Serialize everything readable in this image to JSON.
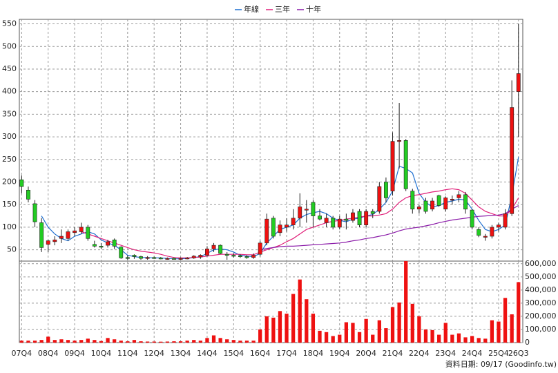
{
  "chart_data": {
    "type": "candlestick",
    "legend": "top",
    "grid": true,
    "source": "資料日期: 09/17 (Goodinfo.tw)",
    "categories": [
      "07Q4",
      null,
      null,
      null,
      "08Q4",
      null,
      null,
      null,
      "09Q4",
      null,
      null,
      null,
      "10Q4",
      null,
      null,
      null,
      "11Q4",
      null,
      null,
      null,
      "12Q4",
      null,
      null,
      null,
      "13Q4",
      null,
      null,
      null,
      "14Q4",
      null,
      null,
      null,
      "15Q4",
      null,
      null,
      null,
      "16Q4",
      null,
      null,
      null,
      "17Q4",
      null,
      null,
      null,
      "18Q4",
      null,
      null,
      null,
      "19Q4",
      null,
      null,
      null,
      "20Q4",
      null,
      null,
      null,
      "21Q4",
      null,
      null,
      null,
      "22Q4",
      null,
      null,
      null,
      "23Q4",
      null,
      null,
      null,
      "24Q4",
      null,
      null,
      null,
      "25Q4",
      null,
      null,
      "26Q3"
    ],
    "open": [
      205,
      182,
      152,
      110,
      62,
      68,
      75,
      75,
      88,
      90,
      100,
      62,
      58,
      60,
      72,
      56,
      33,
      38,
      35,
      32,
      33,
      32,
      30,
      31,
      30,
      31,
      32,
      34,
      38,
      52,
      60,
      40,
      38,
      37,
      35,
      33,
      40,
      65,
      120,
      88,
      100,
      105,
      120,
      140,
      155,
      125,
      110,
      120,
      100,
      118,
      115,
      135,
      105,
      135,
      135,
      200,
      180,
      290,
      292,
      180,
      140,
      158,
      140,
      170,
      140,
      160,
      165,
      172,
      138,
      95,
      80,
      80,
      100,
      100,
      130,
      400
    ],
    "high": [
      215,
      190,
      160,
      120,
      72,
      80,
      95,
      95,
      100,
      110,
      105,
      70,
      65,
      72,
      75,
      58,
      38,
      40,
      37,
      36,
      35,
      34,
      33,
      33,
      33,
      34,
      38,
      40,
      58,
      65,
      62,
      45,
      42,
      40,
      38,
      42,
      70,
      130,
      125,
      115,
      120,
      140,
      175,
      160,
      160,
      140,
      130,
      125,
      125,
      130,
      140,
      140,
      140,
      140,
      200,
      210,
      310,
      375,
      295,
      185,
      150,
      165,
      165,
      172,
      168,
      170,
      180,
      178,
      140,
      100,
      85,
      105,
      110,
      140,
      425,
      550
    ],
    "low": [
      175,
      155,
      100,
      45,
      45,
      60,
      65,
      70,
      80,
      85,
      70,
      55,
      52,
      55,
      52,
      30,
      28,
      30,
      28,
      28,
      30,
      29,
      28,
      29,
      28,
      29,
      30,
      30,
      35,
      45,
      40,
      28,
      33,
      32,
      30,
      30,
      35,
      60,
      75,
      80,
      90,
      95,
      100,
      110,
      100,
      115,
      100,
      95,
      95,
      95,
      110,
      100,
      100,
      120,
      130,
      155,
      170,
      230,
      180,
      130,
      130,
      130,
      135,
      145,
      135,
      150,
      155,
      130,
      95,
      78,
      70,
      75,
      90,
      95,
      125,
      300
    ],
    "close": [
      190,
      162,
      112,
      55,
      70,
      72,
      80,
      90,
      92,
      100,
      75,
      58,
      57,
      68,
      58,
      32,
      32,
      35,
      31,
      33,
      32,
      30,
      31,
      30,
      31,
      32,
      36,
      38,
      52,
      60,
      42,
      38,
      37,
      35,
      33,
      38,
      65,
      118,
      80,
      105,
      105,
      120,
      145,
      140,
      125,
      118,
      120,
      100,
      118,
      115,
      132,
      105,
      135,
      130,
      190,
      165,
      290,
      292,
      185,
      140,
      145,
      135,
      158,
      148,
      165,
      162,
      172,
      140,
      100,
      82,
      80,
      100,
      105,
      130,
      365,
      440
    ],
    "volume": [
      15000,
      15000,
      15000,
      20000,
      45000,
      20000,
      25000,
      20000,
      15000,
      20000,
      30000,
      20000,
      12000,
      35000,
      25000,
      15000,
      10000,
      20000,
      10000,
      8000,
      8000,
      7000,
      8000,
      10000,
      10000,
      15000,
      20000,
      15000,
      35000,
      55000,
      35000,
      25000,
      20000,
      15000,
      15000,
      15000,
      100000,
      200000,
      190000,
      240000,
      220000,
      370000,
      480000,
      330000,
      220000,
      90000,
      80000,
      50000,
      60000,
      155000,
      150000,
      80000,
      180000,
      60000,
      170000,
      110000,
      270000,
      305000,
      620000,
      295000,
      200000,
      100000,
      95000,
      60000,
      150000,
      60000,
      70000,
      40000,
      50000,
      35000,
      30000,
      170000,
      160000,
      340000,
      215000,
      460000
    ],
    "up_color": "#ee1111",
    "down_color": "#22cc22",
    "volume_color": "#ee1111",
    "series": [
      {
        "name": "年線",
        "color": "#1e6fd0",
        "values": [
          null,
          null,
          null,
          125,
          100,
          85,
          75,
          70,
          80,
          85,
          90,
          85,
          72,
          65,
          60,
          50,
          38,
          35,
          33,
          33,
          32,
          32,
          31,
          30,
          30,
          31,
          33,
          35,
          42,
          50,
          52,
          50,
          45,
          38,
          36,
          35,
          42,
          65,
          80,
          95,
          100,
          105,
          120,
          128,
          132,
          135,
          130,
          120,
          115,
          112,
          118,
          120,
          125,
          128,
          140,
          155,
          180,
          235,
          230,
          220,
          175,
          155,
          145,
          148,
          155,
          158,
          162,
          160,
          140,
          115,
          95,
          90,
          95,
          105,
          170,
          255
        ]
      },
      {
        "name": "三年",
        "color": "#e0207a",
        "values": [
          null,
          null,
          null,
          null,
          null,
          null,
          null,
          null,
          null,
          90,
          85,
          80,
          75,
          70,
          65,
          60,
          55,
          50,
          47,
          45,
          43,
          40,
          36,
          33,
          32,
          32,
          33,
          34,
          36,
          38,
          40,
          40,
          40,
          40,
          39,
          39,
          45,
          50,
          55,
          60,
          68,
          75,
          85,
          95,
          100,
          105,
          110,
          113,
          115,
          118,
          120,
          122,
          125,
          125,
          127,
          130,
          140,
          155,
          165,
          170,
          172,
          175,
          178,
          180,
          183,
          185,
          183,
          175,
          160,
          145,
          135,
          130,
          125,
          125,
          140,
          165
        ]
      },
      {
        "name": "十年",
        "color": "#8a1aa8",
        "values": [
          null,
          null,
          null,
          null,
          null,
          null,
          null,
          null,
          null,
          null,
          null,
          null,
          null,
          null,
          null,
          null,
          null,
          null,
          null,
          null,
          null,
          null,
          null,
          null,
          null,
          null,
          null,
          null,
          null,
          null,
          null,
          null,
          null,
          null,
          null,
          null,
          50,
          53,
          55,
          57,
          58,
          58,
          59,
          60,
          61,
          62,
          63,
          64,
          65,
          67,
          70,
          72,
          75,
          77,
          80,
          83,
          87,
          92,
          96,
          98,
          100,
          103,
          106,
          110,
          113,
          116,
          118,
          120,
          122,
          124,
          125,
          126,
          127,
          130,
          140,
          148
        ]
      }
    ],
    "ylim": [
      25,
      560
    ],
    "yticks": [
      50,
      100,
      150,
      200,
      250,
      300,
      350,
      400,
      450,
      500,
      550
    ],
    "volume_ylim": [
      0,
      620000
    ],
    "volume_yticks": [
      0,
      {
        "value": 100000,
        "label": "100,000"
      },
      {
        "value": 200000,
        "label": "200,000"
      },
      {
        "value": 300000,
        "label": "300,000"
      },
      {
        "value": 400000,
        "label": "400,000"
      },
      {
        "value": 500000,
        "label": "500,000"
      },
      {
        "value": 600000,
        "label": "600,000"
      }
    ]
  }
}
